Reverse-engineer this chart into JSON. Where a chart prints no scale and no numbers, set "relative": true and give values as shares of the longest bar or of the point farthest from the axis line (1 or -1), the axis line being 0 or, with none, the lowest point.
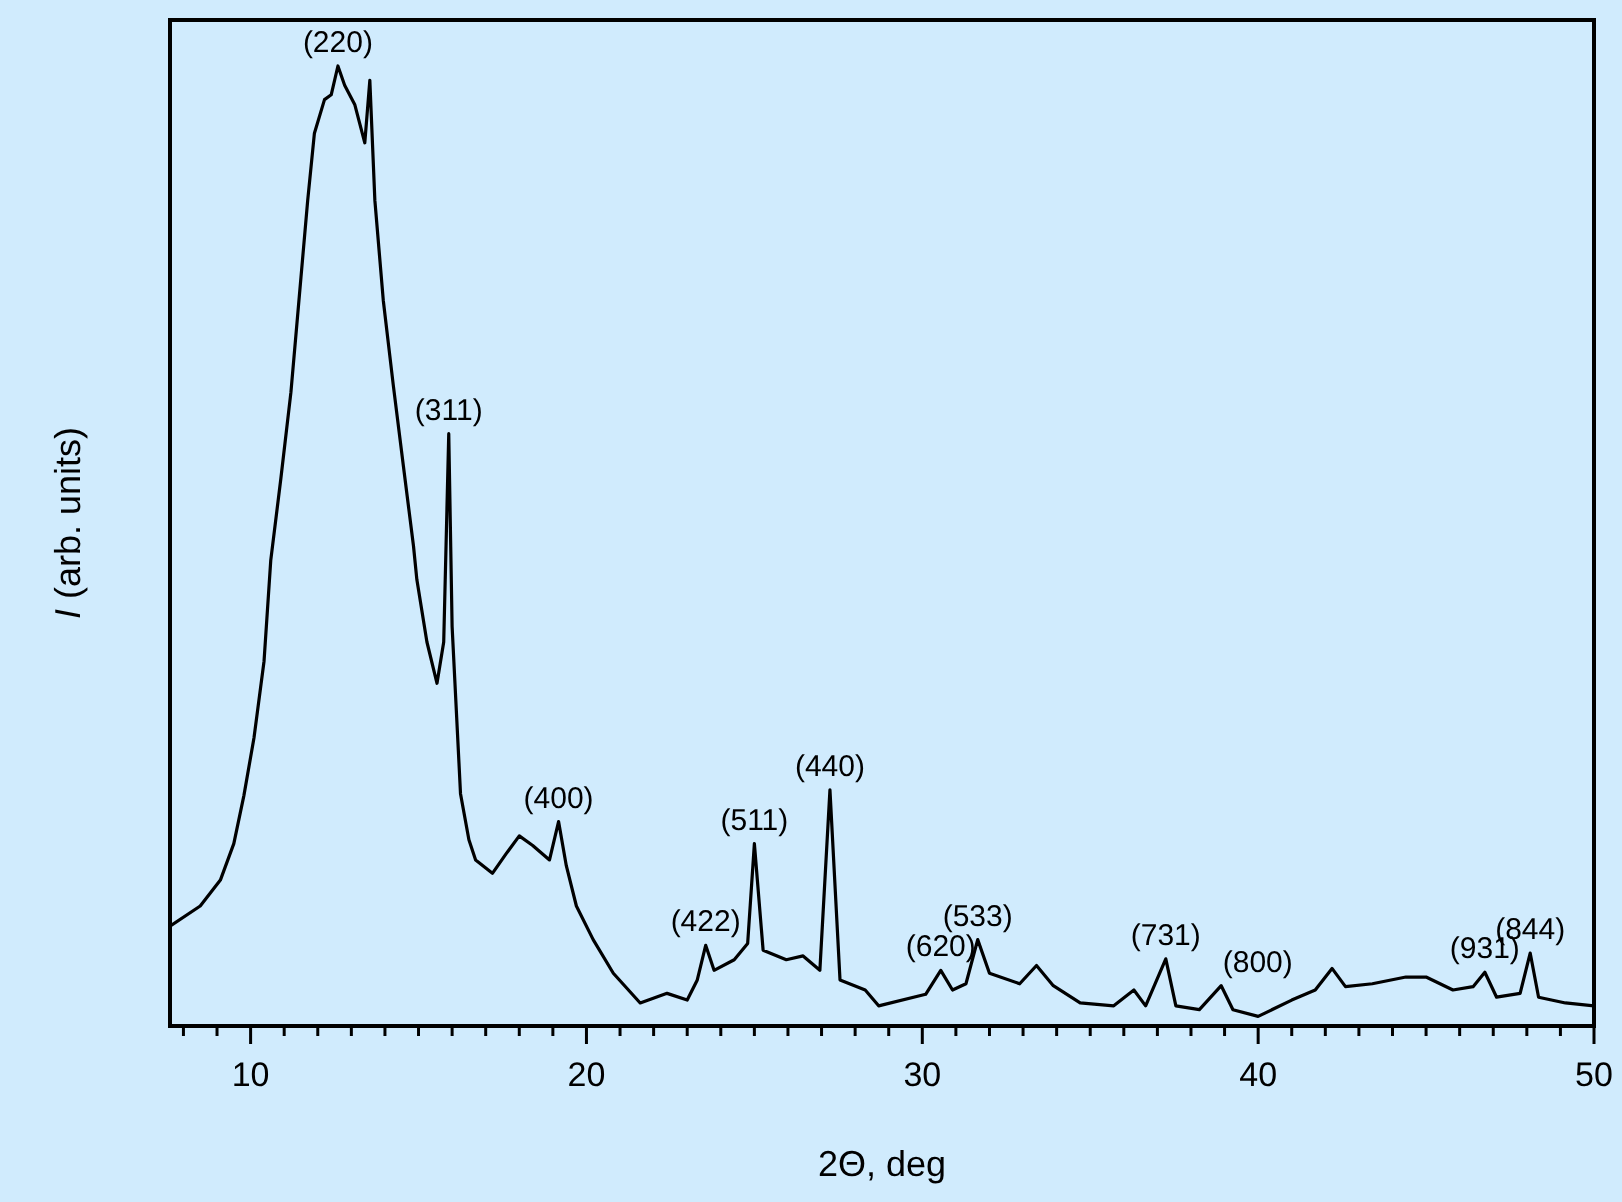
{
  "chart_data": {
    "type": "line",
    "xlabel": "2Θ, deg",
    "ylabel": "I (arb. units)",
    "relative": true,
    "xlim": [
      7.6,
      50
    ],
    "xticks": [
      {
        "value": 8,
        "label": null
      },
      {
        "value": 9,
        "label": null
      },
      10,
      {
        "value": 11,
        "label": null
      },
      {
        "value": 12,
        "label": null
      },
      {
        "value": 13,
        "label": null
      },
      {
        "value": 14,
        "label": null
      },
      {
        "value": 15,
        "label": null
      },
      {
        "value": 16,
        "label": null
      },
      {
        "value": 17,
        "label": null
      },
      {
        "value": 18,
        "label": null
      },
      {
        "value": 19,
        "label": null
      },
      20,
      {
        "value": 21,
        "label": null
      },
      {
        "value": 22,
        "label": null
      },
      {
        "value": 23,
        "label": null
      },
      {
        "value": 24,
        "label": null
      },
      {
        "value": 25,
        "label": null
      },
      {
        "value": 26,
        "label": null
      },
      {
        "value": 27,
        "label": null
      },
      {
        "value": 28,
        "label": null
      },
      {
        "value": 29,
        "label": null
      },
      30,
      {
        "value": 31,
        "label": null
      },
      {
        "value": 32,
        "label": null
      },
      {
        "value": 33,
        "label": null
      },
      {
        "value": 34,
        "label": null
      },
      {
        "value": 35,
        "label": null
      },
      {
        "value": 36,
        "label": null
      },
      {
        "value": 37,
        "label": null
      },
      {
        "value": 38,
        "label": null
      },
      {
        "value": 39,
        "label": null
      },
      40,
      {
        "value": 41,
        "label": null
      },
      {
        "value": 42,
        "label": null
      },
      {
        "value": 43,
        "label": null
      },
      {
        "value": 44,
        "label": null
      },
      {
        "value": 45,
        "label": null
      },
      {
        "value": 46,
        "label": null
      },
      {
        "value": 47,
        "label": null
      },
      {
        "value": 48,
        "label": null
      },
      {
        "value": 49,
        "label": null
      },
      50
    ],
    "grid": false,
    "marker": "none",
    "line_style": "solid",
    "series": [
      {
        "color": "#000000",
        "x": [
          7.6,
          8.5,
          9.1,
          9.5,
          9.8,
          10.1,
          10.4,
          10.6,
          10.9,
          11.2,
          11.5,
          11.7,
          11.9,
          12.2,
          12.4,
          12.6,
          12.8,
          13.1,
          13.4,
          13.55,
          13.7,
          13.95,
          14.25,
          14.55,
          14.85,
          14.95,
          15.25,
          15.55,
          15.75,
          15.9,
          16.0,
          16.25,
          16.5,
          16.7,
          17.2,
          17.6,
          18.0,
          18.4,
          18.9,
          19.17,
          19.4,
          19.7,
          20.2,
          20.8,
          21.6,
          22.4,
          23.0,
          23.3,
          23.55,
          23.8,
          24.4,
          24.8,
          25.0,
          25.26,
          25.95,
          26.45,
          26.95,
          27.25,
          27.55,
          28.3,
          28.7,
          30.1,
          30.55,
          30.9,
          31.3,
          31.65,
          32.0,
          32.9,
          33.4,
          33.9,
          34.7,
          35.7,
          36.3,
          36.65,
          37.25,
          37.55,
          38.25,
          38.9,
          39.25,
          40.0,
          41.0,
          41.7,
          42.2,
          42.6,
          43.4,
          44.4,
          45.0,
          45.8,
          46.4,
          46.75,
          47.1,
          47.8,
          48.1,
          48.35,
          49.15,
          50.0
        ],
        "values": [
          0.104,
          0.125,
          0.152,
          0.19,
          0.24,
          0.3,
          0.38,
          0.485,
          0.57,
          0.66,
          0.78,
          0.86,
          0.93,
          0.965,
          0.97,
          1.0,
          0.98,
          0.96,
          0.92,
          0.985,
          0.86,
          0.756,
          0.667,
          0.583,
          0.5,
          0.465,
          0.4,
          0.357,
          0.4,
          0.617,
          0.416,
          0.242,
          0.194,
          0.173,
          0.159,
          0.179,
          0.198,
          0.188,
          0.173,
          0.213,
          0.167,
          0.125,
          0.09,
          0.055,
          0.024,
          0.034,
          0.027,
          0.048,
          0.084,
          0.058,
          0.069,
          0.086,
          0.19,
          0.079,
          0.069,
          0.073,
          0.058,
          0.246,
          0.048,
          0.0375,
          0.021,
          0.033,
          0.058,
          0.0375,
          0.044,
          0.09,
          0.055,
          0.044,
          0.063,
          0.042,
          0.024,
          0.021,
          0.0375,
          0.021,
          0.07,
          0.021,
          0.017,
          0.042,
          0.017,
          0.01,
          0.027,
          0.0375,
          0.06,
          0.041,
          0.044,
          0.051,
          0.051,
          0.0375,
          0.041,
          0.056,
          0.03,
          0.034,
          0.076,
          0.03,
          0.024,
          0.021
        ]
      }
    ],
    "annotations": [
      {
        "text": "(220)",
        "x": 12.6,
        "y": 1.0
      },
      {
        "text": "(311)",
        "x": 15.9,
        "y": 0.617
      },
      {
        "text": "(400)",
        "x": 19.17,
        "y": 0.213
      },
      {
        "text": "(422)",
        "x": 23.55,
        "y": 0.084
      },
      {
        "text": "(511)",
        "x": 25.0,
        "y": 0.19
      },
      {
        "text": "(440)",
        "x": 27.25,
        "y": 0.246
      },
      {
        "text": "(620)",
        "x": 30.55,
        "y": 0.058
      },
      {
        "text": "(533)",
        "x": 31.65,
        "y": 0.09
      },
      {
        "text": "(731)",
        "x": 37.25,
        "y": 0.07
      },
      {
        "text": "(800)",
        "x": 38.9,
        "y": 0.042
      },
      {
        "text": "(931)",
        "x": 46.75,
        "y": 0.056
      },
      {
        "text": "(844)",
        "x": 48.1,
        "y": 0.076
      }
    ]
  }
}
